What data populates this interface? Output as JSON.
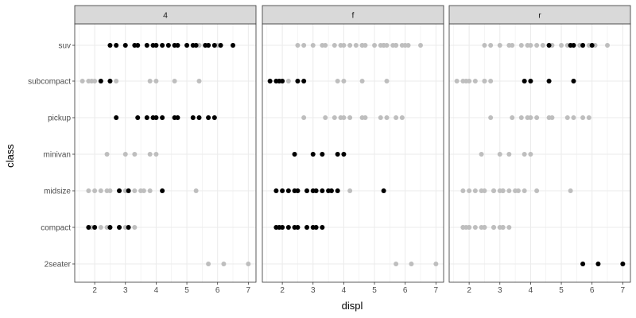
{
  "chart_data": {
    "type": "scatter",
    "facet_by": "drv",
    "facets": [
      "4",
      "f",
      "r"
    ],
    "xlabel": "displ",
    "ylabel": "class",
    "xlim": [
      1.35,
      7.25
    ],
    "x_ticks": [
      2,
      3,
      4,
      5,
      6,
      7
    ],
    "categories": [
      "2seater",
      "compact",
      "midsize",
      "minivan",
      "pickup",
      "subcompact",
      "suv"
    ],
    "grid": true,
    "highlight_color": "#000000",
    "background_color": "#bebebe",
    "strip_fill": "#d9d9d9",
    "points": {
      "2seater": {
        "4": [],
        "f": [],
        "r": [
          5.7,
          6.2,
          7.0
        ]
      },
      "compact": {
        "4": [
          1.8,
          2.0,
          2.5,
          2.8,
          3.1
        ],
        "f": [
          1.8,
          1.9,
          2.0,
          2.2,
          2.4,
          2.5,
          2.8,
          3.0,
          3.1,
          3.3
        ],
        "r": []
      },
      "midsize": {
        "4": [
          2.8,
          3.1,
          4.2
        ],
        "f": [
          1.8,
          2.0,
          2.2,
          2.4,
          2.5,
          2.8,
          3.0,
          3.1,
          3.3,
          3.5,
          3.6,
          3.8,
          5.3
        ],
        "r": []
      },
      "minivan": {
        "4": [],
        "f": [
          2.4,
          3.0,
          3.3,
          3.8,
          4.0
        ],
        "r": []
      },
      "pickup": {
        "4": [
          2.7,
          3.4,
          3.7,
          3.9,
          4.0,
          4.2,
          4.6,
          4.7,
          5.2,
          5.4,
          5.7,
          5.9
        ],
        "f": [],
        "r": []
      },
      "subcompact": {
        "4": [
          2.2,
          2.5
        ],
        "f": [
          1.6,
          1.8,
          1.9,
          2.0,
          2.5,
          2.7
        ],
        "r": [
          3.8,
          4.0,
          4.6,
          5.4
        ]
      },
      "suv": {
        "4": [
          2.5,
          2.7,
          3.0,
          3.3,
          3.4,
          3.7,
          3.9,
          4.0,
          4.2,
          4.4,
          4.6,
          4.7,
          5.0,
          5.2,
          5.3,
          5.6,
          5.7,
          5.9,
          6.1,
          6.5
        ],
        "f": [],
        "r": [
          4.6,
          5.3,
          5.4,
          5.7,
          6.0
        ]
      }
    }
  }
}
